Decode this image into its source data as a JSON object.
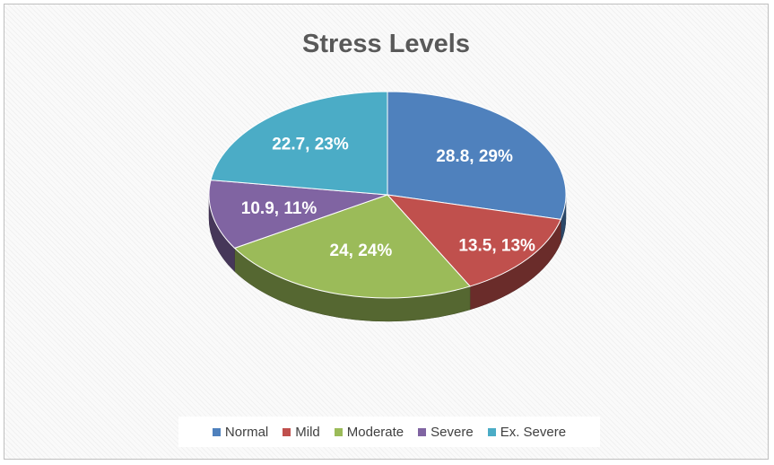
{
  "chart_data": {
    "type": "pie",
    "title": "Stress Levels",
    "categories": [
      "Normal",
      "Mild",
      "Moderate",
      "Severe",
      "Ex. Severe"
    ],
    "values": [
      28.8,
      13.5,
      24,
      10.9,
      22.7
    ],
    "percent_labels": [
      "29%",
      "13%",
      "24%",
      "11%",
      "23%"
    ],
    "data_labels": [
      "28.8, 29%",
      "13.5, 13%",
      "24, 24%",
      "10.9, 11%",
      "22.7, 23%"
    ],
    "colors": [
      "#4f81bd",
      "#c0504d",
      "#9bbb59",
      "#8064a2",
      "#4bacc6"
    ],
    "legend_position": "bottom",
    "style": "3d"
  }
}
